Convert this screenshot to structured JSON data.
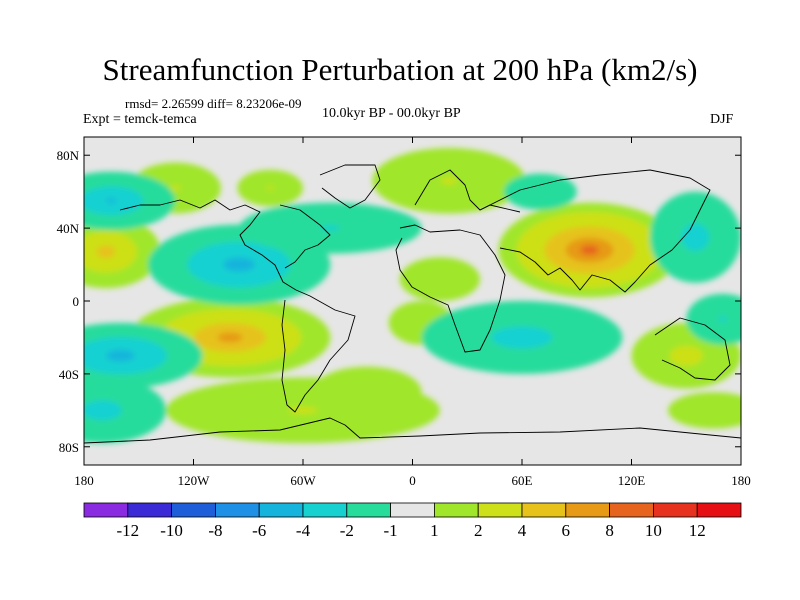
{
  "chart_data": {
    "type": "heatmap",
    "title": "Streamfunction Perturbation at 200 hPa (km2/s)",
    "left_subtitle": "rmsd= 2.26599 diff= 8.23206e-09",
    "left_string": "Expt = temck-temca",
    "center_string": "10.0kyr BP - 00.0kyr BP",
    "right_string": "DJF",
    "x_axis": {
      "range": [
        -180,
        180
      ],
      "ticks": [
        -180,
        -120,
        -60,
        0,
        60,
        120,
        180
      ],
      "tick_labels": [
        "180",
        "120W",
        "60W",
        "0",
        "60E",
        "120E",
        "180"
      ]
    },
    "y_axis": {
      "range": [
        -90,
        90
      ],
      "ticks": [
        80,
        40,
        0,
        -40,
        -80
      ],
      "tick_labels": [
        "80N",
        "40N",
        "0",
        "40S",
        "80S"
      ]
    },
    "colorbar": {
      "labels": [
        "-12",
        "-10",
        "-8",
        "-6",
        "-4",
        "-2",
        "-1",
        "1",
        "2",
        "4",
        "6",
        "8",
        "10",
        "12"
      ],
      "colors": [
        "#8a2be2",
        "#3a2bd6",
        "#1e5fd9",
        "#1e90e6",
        "#15b4dc",
        "#17d1d1",
        "#28dc9c",
        "#e6e6e6",
        "#a0e62a",
        "#cde019",
        "#e6c21a",
        "#e69a15",
        "#e6641e",
        "#e6321e",
        "#e60f14"
      ]
    },
    "anomalies": [
      {
        "lon": 97,
        "lat": 28,
        "rx": 50,
        "ry": 26,
        "value": 9
      },
      {
        "lon": -100,
        "lat": -20,
        "rx": 55,
        "ry": 22,
        "value": 7
      },
      {
        "lon": -168,
        "lat": 27,
        "rx": 30,
        "ry": 20,
        "value": 5
      },
      {
        "lon": -130,
        "lat": 62,
        "rx": 25,
        "ry": 14,
        "value": 2
      },
      {
        "lon": -78,
        "lat": 62,
        "rx": 18,
        "ry": 10,
        "value": 2
      },
      {
        "lon": 20,
        "lat": 66,
        "rx": 42,
        "ry": 18,
        "value": 2
      },
      {
        "lon": -60,
        "lat": -60,
        "rx": 75,
        "ry": 18,
        "value": 2
      },
      {
        "lon": -25,
        "lat": -50,
        "rx": 30,
        "ry": 14,
        "value": 1.5
      },
      {
        "lon": 15,
        "lat": 12,
        "rx": 22,
        "ry": 12,
        "value": 1.5
      },
      {
        "lon": 5,
        "lat": -12,
        "rx": 18,
        "ry": 12,
        "value": 1.5
      },
      {
        "lon": 150,
        "lat": -30,
        "rx": 30,
        "ry": 18,
        "value": 3
      },
      {
        "lon": 165,
        "lat": -60,
        "rx": 25,
        "ry": 10,
        "value": 1.5
      },
      {
        "lon": -95,
        "lat": 20,
        "rx": 50,
        "ry": 22,
        "value": -5
      },
      {
        "lon": -45,
        "lat": 40,
        "rx": 50,
        "ry": 14,
        "value": -2
      },
      {
        "lon": -160,
        "lat": -30,
        "rx": 45,
        "ry": 18,
        "value": -5
      },
      {
        "lon": -165,
        "lat": 55,
        "rx": 35,
        "ry": 16,
        "value": -4
      },
      {
        "lon": 60,
        "lat": -20,
        "rx": 55,
        "ry": 20,
        "value": -3
      },
      {
        "lon": 155,
        "lat": 35,
        "rx": 25,
        "ry": 25,
        "value": -3
      },
      {
        "lon": -170,
        "lat": -60,
        "rx": 35,
        "ry": 18,
        "value": -3
      },
      {
        "lon": 170,
        "lat": -10,
        "rx": 20,
        "ry": 14,
        "value": -2
      },
      {
        "lon": 70,
        "lat": 60,
        "rx": 20,
        "ry": 10,
        "value": -1.5
      }
    ]
  }
}
